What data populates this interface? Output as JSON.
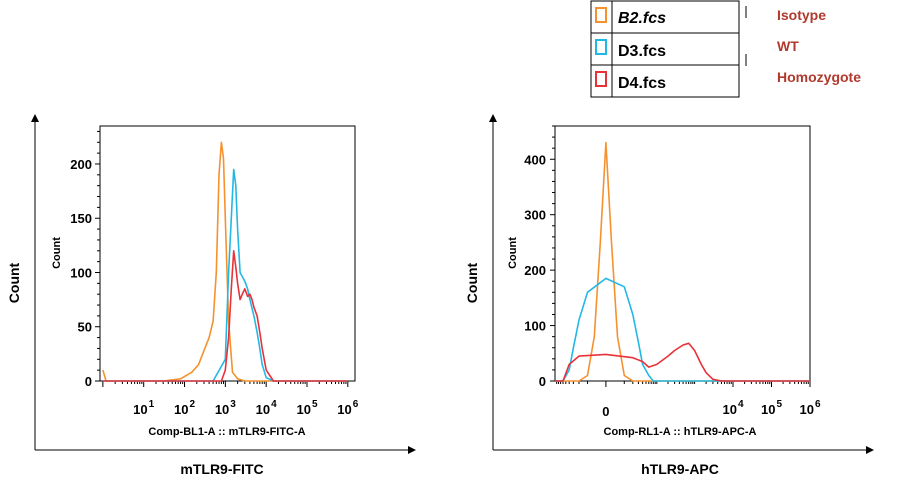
{
  "legend": {
    "items": [
      {
        "name": "B2.fcs",
        "italic": true,
        "color": "#f5922f",
        "annotation": "Isotype"
      },
      {
        "name": "D3.fcs",
        "italic": false,
        "color": "#22b8e6",
        "annotation": "WT"
      },
      {
        "name": "D4.fcs",
        "italic": false,
        "color": "#e8323a",
        "annotation": "Homozygote"
      }
    ]
  },
  "chart_data": [
    {
      "type": "line",
      "inner_xlabel": "Comp-BL1-A :: mTLR9-FITC-A",
      "inner_ylabel": "Count",
      "outer_xlabel": "mTLR9-FITC",
      "outer_ylabel": "Count",
      "x_scale": "log",
      "xlim": [
        0.85,
        1500000
      ],
      "ylim": [
        0,
        235
      ],
      "y_ticks": [
        0,
        50,
        100,
        150,
        200
      ],
      "x_tick_labels": [
        {
          "base": "10",
          "exp": "1"
        },
        {
          "base": "10",
          "exp": "2"
        },
        {
          "base": "10",
          "exp": "3"
        },
        {
          "base": "10",
          "exp": "4"
        },
        {
          "base": "10",
          "exp": "5"
        },
        {
          "base": "10",
          "exp": "6"
        }
      ],
      "x_tick_values": [
        10,
        100,
        1000,
        10000,
        100000,
        1000000
      ],
      "series": [
        {
          "name": "B2.fcs",
          "color": "#f5922f",
          "x": [
            1,
            1.2,
            10,
            30,
            80,
            150,
            220,
            300,
            400,
            500,
            600,
            700,
            800,
            900,
            1000,
            1200,
            1500,
            2000,
            3000,
            10000,
            1000000
          ],
          "y": [
            10,
            0,
            0,
            0,
            2,
            8,
            15,
            28,
            40,
            55,
            100,
            190,
            220,
            205,
            150,
            55,
            8,
            2,
            0,
            0,
            0
          ]
        },
        {
          "name": "D3.fcs",
          "color": "#22b8e6",
          "x": [
            1,
            500,
            1000,
            1200,
            1400,
            1600,
            1800,
            2000,
            2300,
            2700,
            3000,
            3500,
            4000,
            5000,
            6000,
            7000,
            8000,
            10000,
            15000,
            1000000
          ],
          "y": [
            0,
            0,
            20,
            100,
            150,
            195,
            180,
            140,
            100,
            95,
            92,
            85,
            75,
            60,
            45,
            30,
            15,
            3,
            0,
            0
          ]
        },
        {
          "name": "D4.fcs",
          "color": "#e8323a",
          "x": [
            1,
            800,
            1000,
            1200,
            1400,
            1600,
            1800,
            2000,
            2300,
            2600,
            3000,
            3500,
            4000,
            4500,
            5000,
            6000,
            7000,
            8000,
            10000,
            15000,
            1000000
          ],
          "y": [
            0,
            0,
            10,
            40,
            85,
            120,
            105,
            90,
            75,
            80,
            85,
            78,
            80,
            75,
            68,
            60,
            45,
            30,
            10,
            0,
            0
          ]
        }
      ]
    },
    {
      "type": "line",
      "inner_xlabel": "Comp-RL1-A :: hTLR9-APC-A",
      "inner_ylabel": "Count",
      "outer_xlabel": "hTLR9-APC",
      "outer_ylabel": "Count",
      "x_scale": "biexponential",
      "xlim": [
        -100,
        1000000
      ],
      "ylim": [
        0,
        460
      ],
      "y_ticks": [
        0,
        100,
        200,
        300,
        400
      ],
      "x_tick_labels": [
        {
          "base": "0",
          "exp": ""
        },
        {
          "base": "10",
          "exp": "4"
        },
        {
          "base": "10",
          "exp": "5"
        },
        {
          "base": "10",
          "exp": "6"
        }
      ],
      "x_tick_values": [
        0,
        10000,
        100000,
        1000000
      ],
      "series": [
        {
          "name": "B2.fcs",
          "color": "#f5922f",
          "x": [
            -100,
            -20,
            -10,
            -5,
            -2,
            0,
            2,
            5,
            10,
            20,
            1000000
          ],
          "y": [
            0,
            0,
            10,
            80,
            250,
            430,
            250,
            80,
            10,
            0,
            0
          ]
        },
        {
          "name": "D3.fcs",
          "color": "#22b8e6",
          "x": [
            -100,
            -60,
            -40,
            -30,
            -20,
            -10,
            0,
            10,
            20,
            30,
            40,
            60,
            80,
            150,
            1000000
          ],
          "y": [
            0,
            0,
            20,
            60,
            110,
            160,
            185,
            170,
            120,
            70,
            30,
            10,
            0,
            0,
            0
          ]
        },
        {
          "name": "D4.fcs",
          "color": "#e8323a",
          "x": [
            -100,
            -60,
            -40,
            -20,
            0,
            20,
            40,
            60,
            100,
            200,
            300,
            500,
            700,
            1000,
            1500,
            2000,
            3000,
            5000,
            1000000
          ],
          "y": [
            0,
            0,
            30,
            45,
            48,
            42,
            35,
            25,
            30,
            45,
            55,
            65,
            68,
            55,
            30,
            15,
            3,
            0,
            0
          ]
        }
      ]
    }
  ]
}
